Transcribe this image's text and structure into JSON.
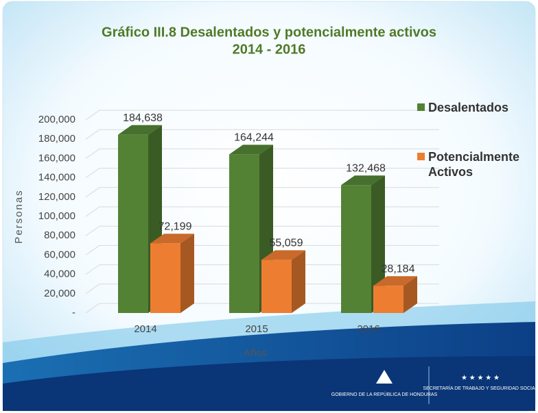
{
  "chart_data": {
    "type": "bar3d",
    "title": "Gráfico III.8 Desalentados y potencialmente activos",
    "subtitle": "2014 - 2016",
    "y_label": "Personas",
    "x_label": "Años",
    "categories": [
      "2014",
      "2015",
      "2016"
    ],
    "series": [
      {
        "name": "Desalentados",
        "color": "#548235",
        "values": [
          184638,
          164244,
          132468
        ],
        "value_labels": [
          "184,638",
          "164,244",
          "132,468"
        ]
      },
      {
        "name": "Potencialmente Activos",
        "color": "#ed7d31",
        "values": [
          72199,
          55059,
          28184
        ],
        "value_labels": [
          "72,199",
          "55,059",
          "28,184"
        ]
      }
    ],
    "ylim": [
      0,
      200000
    ],
    "yticks": [
      {
        "value": 0,
        "label": "-"
      },
      {
        "value": 20000,
        "label": "20,000"
      },
      {
        "value": 40000,
        "label": "40,000"
      },
      {
        "value": 60000,
        "label": "60,000"
      },
      {
        "value": 80000,
        "label": "80,000"
      },
      {
        "value": 100000,
        "label": "100,000"
      },
      {
        "value": 120000,
        "label": "120,000"
      },
      {
        "value": 140000,
        "label": "140,000"
      },
      {
        "value": 160000,
        "label": "160,000"
      },
      {
        "value": 180000,
        "label": "180,000"
      },
      {
        "value": 200000,
        "label": "200,000"
      }
    ],
    "grid": true,
    "legend": "right"
  },
  "logos": [
    "GOBIERNO DE LA REPÚBLICA DE HONDURAS",
    "SECRETARÍA DE TRABAJO Y SEGURIDAD SOCIAL"
  ]
}
